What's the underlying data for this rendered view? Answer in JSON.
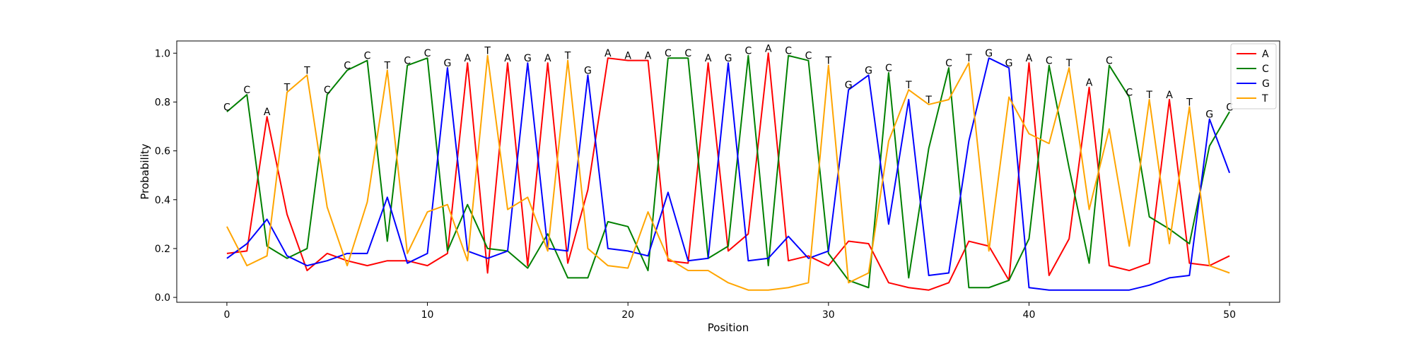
{
  "chart_data": {
    "type": "line",
    "xlabel": "Position",
    "ylabel": "Probability",
    "xlim": [
      -2.5,
      52.5
    ],
    "ylim": [
      -0.02,
      1.05
    ],
    "xticks": [
      0,
      10,
      20,
      30,
      40,
      50
    ],
    "yticks": [
      0.0,
      0.2,
      0.4,
      0.6,
      0.8,
      1.0
    ],
    "ytick_labels": [
      "0.0",
      "0.2",
      "0.4",
      "0.6",
      "0.8",
      "1.0"
    ],
    "grid": false,
    "legend": "top-right",
    "x": [
      0,
      1,
      2,
      3,
      4,
      5,
      6,
      7,
      8,
      9,
      10,
      11,
      12,
      13,
      14,
      15,
      16,
      17,
      18,
      19,
      20,
      21,
      22,
      23,
      24,
      25,
      26,
      27,
      28,
      29,
      30,
      31,
      32,
      33,
      34,
      35,
      36,
      37,
      38,
      39,
      40,
      41,
      42,
      43,
      44,
      45,
      46,
      47,
      48,
      49,
      50
    ],
    "series": [
      {
        "name": "A",
        "color": "#ff0000",
        "values": [
          0.18,
          0.19,
          0.74,
          0.34,
          0.11,
          0.18,
          0.15,
          0.13,
          0.15,
          0.15,
          0.13,
          0.18,
          0.96,
          0.1,
          0.96,
          0.13,
          0.96,
          0.14,
          0.44,
          0.98,
          0.97,
          0.97,
          0.15,
          0.14,
          0.96,
          0.19,
          0.26,
          1.0,
          0.15,
          0.17,
          0.13,
          0.23,
          0.22,
          0.06,
          0.04,
          0.03,
          0.06,
          0.23,
          0.21,
          0.07,
          0.96,
          0.09,
          0.24,
          0.86,
          0.13,
          0.11,
          0.14,
          0.81,
          0.14,
          0.13,
          0.17
        ]
      },
      {
        "name": "C",
        "color": "#008000",
        "values": [
          0.76,
          0.83,
          0.21,
          0.16,
          0.2,
          0.83,
          0.93,
          0.97,
          0.23,
          0.95,
          0.98,
          0.19,
          0.38,
          0.2,
          0.19,
          0.12,
          0.26,
          0.08,
          0.08,
          0.31,
          0.29,
          0.11,
          0.98,
          0.98,
          0.16,
          0.21,
          0.99,
          0.13,
          0.99,
          0.97,
          0.18,
          0.07,
          0.04,
          0.92,
          0.08,
          0.61,
          0.94,
          0.04,
          0.04,
          0.07,
          0.24,
          0.95,
          0.53,
          0.14,
          0.95,
          0.82,
          0.33,
          0.28,
          0.22,
          0.62,
          0.76
        ]
      },
      {
        "name": "G",
        "color": "#0000ff",
        "values": [
          0.16,
          0.22,
          0.32,
          0.17,
          0.13,
          0.15,
          0.18,
          0.18,
          0.41,
          0.14,
          0.18,
          0.94,
          0.19,
          0.16,
          0.19,
          0.96,
          0.2,
          0.19,
          0.91,
          0.2,
          0.19,
          0.17,
          0.43,
          0.15,
          0.16,
          0.96,
          0.15,
          0.16,
          0.25,
          0.16,
          0.19,
          0.85,
          0.91,
          0.3,
          0.81,
          0.09,
          0.1,
          0.64,
          0.98,
          0.94,
          0.04,
          0.03,
          0.03,
          0.03,
          0.03,
          0.03,
          0.05,
          0.08,
          0.09,
          0.73,
          0.51
        ]
      },
      {
        "name": "T",
        "color": "#ffa500",
        "values": [
          0.29,
          0.13,
          0.17,
          0.84,
          0.91,
          0.37,
          0.13,
          0.39,
          0.93,
          0.18,
          0.35,
          0.38,
          0.15,
          0.99,
          0.36,
          0.41,
          0.19,
          0.97,
          0.2,
          0.13,
          0.12,
          0.35,
          0.16,
          0.11,
          0.11,
          0.06,
          0.03,
          0.03,
          0.04,
          0.06,
          0.95,
          0.06,
          0.1,
          0.64,
          0.85,
          0.79,
          0.81,
          0.96,
          0.19,
          0.82,
          0.67,
          0.63,
          0.94,
          0.36,
          0.69,
          0.21,
          0.81,
          0.22,
          0.78,
          0.13,
          0.1
        ]
      }
    ],
    "sequence_labels": [
      "C",
      "C",
      "A",
      "T",
      "T",
      "C",
      "C",
      "C",
      "T",
      "C",
      "C",
      "G",
      "A",
      "T",
      "A",
      "G",
      "A",
      "T",
      "G",
      "A",
      "A",
      "A",
      "C",
      "C",
      "A",
      "G",
      "C",
      "A",
      "C",
      "C",
      "T",
      "G",
      "G",
      "C",
      "T",
      "T",
      "C",
      "T",
      "G",
      "G",
      "A",
      "C",
      "T",
      "A",
      "C",
      "C",
      "T",
      "A",
      "T",
      "G",
      "C"
    ],
    "sequence_label_values": [
      0.76,
      0.83,
      0.74,
      0.84,
      0.91,
      0.83,
      0.93,
      0.97,
      0.93,
      0.95,
      0.98,
      0.94,
      0.96,
      0.99,
      0.96,
      0.96,
      0.96,
      0.97,
      0.91,
      0.98,
      0.97,
      0.97,
      0.98,
      0.98,
      0.96,
      0.96,
      0.99,
      1.0,
      0.99,
      0.97,
      0.95,
      0.85,
      0.91,
      0.92,
      0.85,
      0.79,
      0.94,
      0.96,
      0.98,
      0.94,
      0.96,
      0.95,
      0.94,
      0.86,
      0.95,
      0.82,
      0.81,
      0.81,
      0.78,
      0.73,
      0.76
    ]
  }
}
